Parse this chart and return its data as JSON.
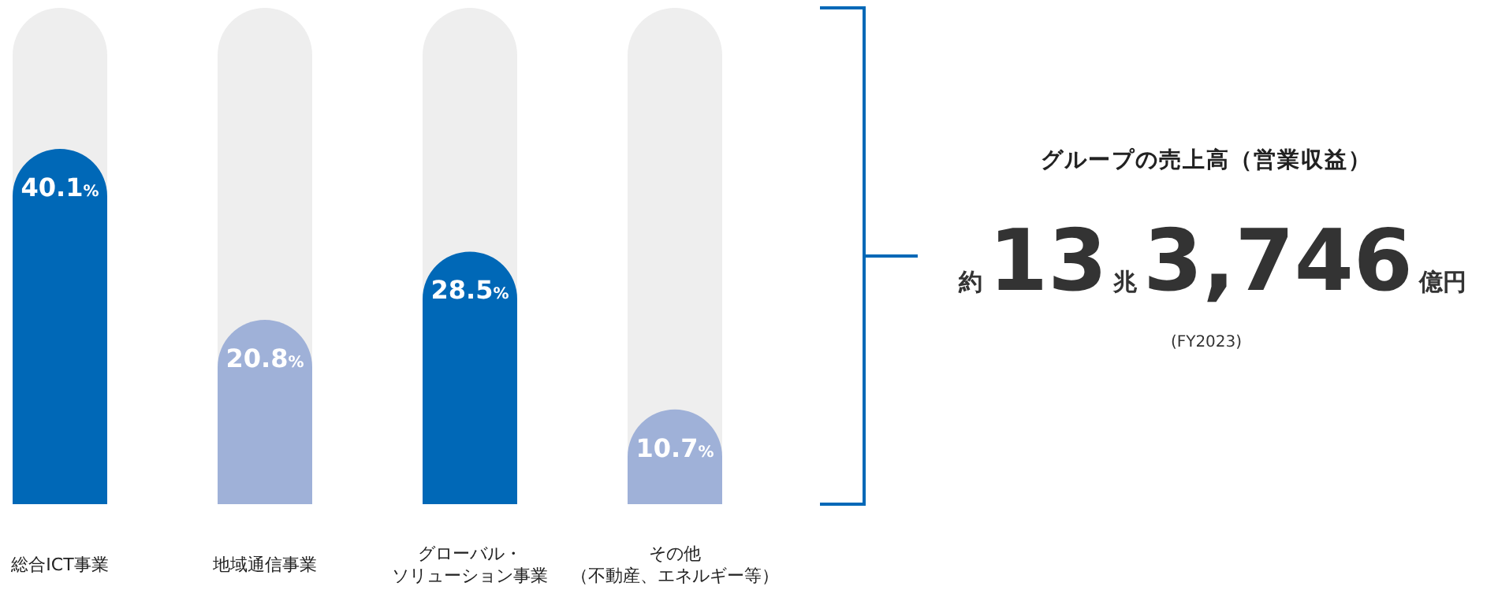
{
  "chart_data": {
    "type": "bar",
    "title": "グループの売上高（営業収益）",
    "categories": [
      "総合ICT事業",
      "地域通信事業",
      "グローバル・ソリューション事業",
      "その他（不動産、エネルギー等）"
    ],
    "values": [
      40.1,
      20.8,
      28.5,
      10.7
    ],
    "colors": [
      "#0068b7",
      "#9fb1d8",
      "#0068b7",
      "#9fb1d8"
    ],
    "value_labels": [
      "40.1%",
      "20.8%",
      "28.5%",
      "10.7%"
    ],
    "ylim": [
      0,
      56
    ],
    "tick_labels": "x",
    "annotations": [
      "約13兆3,746億円",
      "(FY2023)"
    ]
  }
}
